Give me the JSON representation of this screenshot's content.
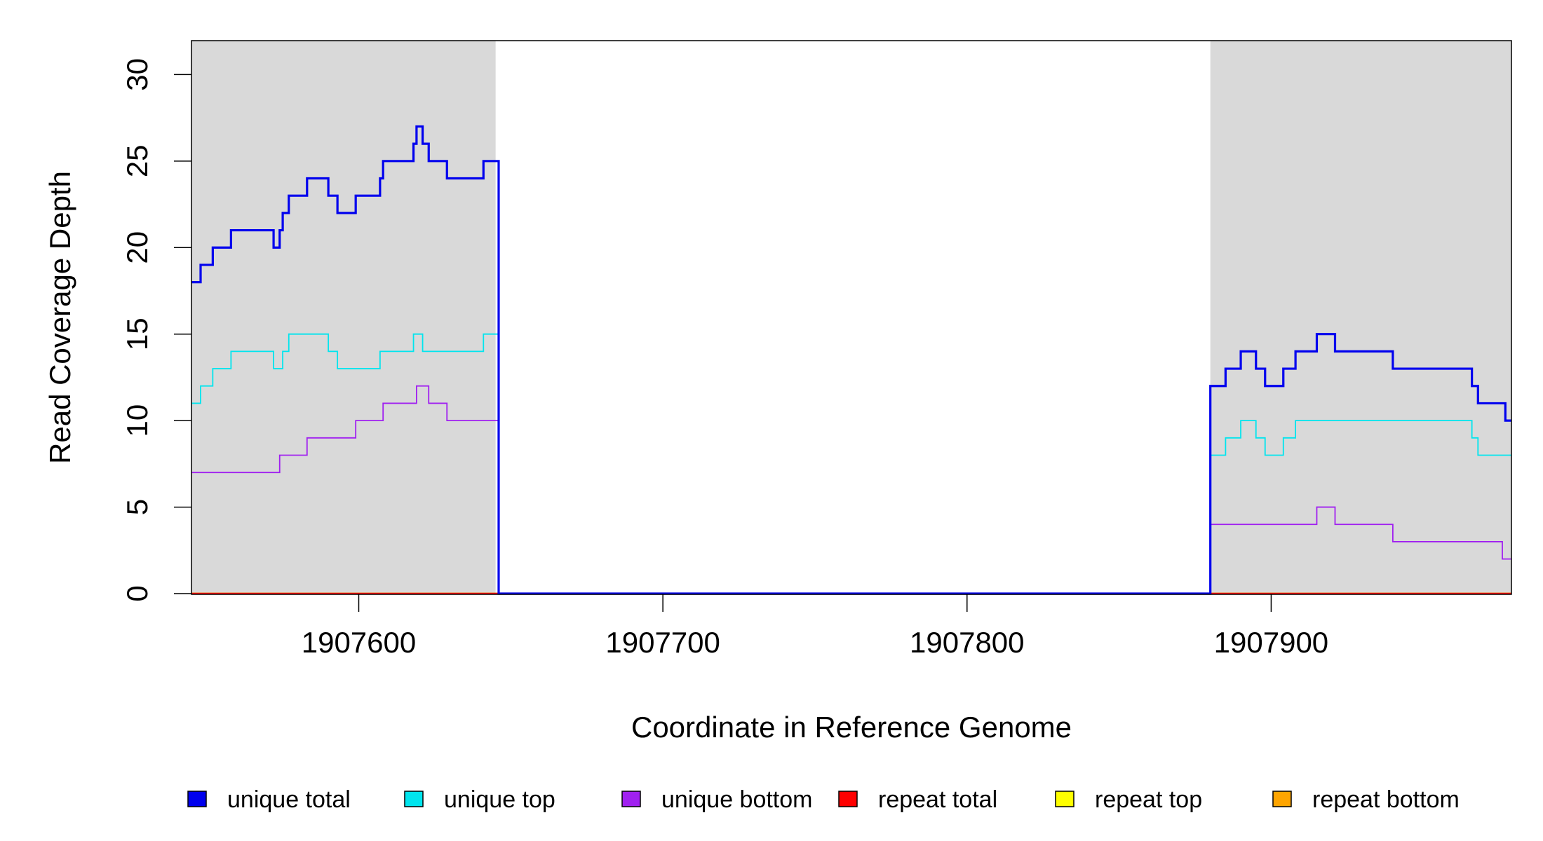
{
  "chart_data": {
    "type": "line",
    "step": true,
    "title": "",
    "xlabel": "Coordinate in Reference Genome",
    "ylabel": "Read Coverage Depth",
    "xlim": [
      1907545,
      1907979
    ],
    "ylim": [
      0,
      32
    ],
    "xticks": [
      1907600,
      1907700,
      1907800,
      1907900
    ],
    "yticks": [
      0,
      5,
      10,
      15,
      20,
      25,
      30
    ],
    "grid": false,
    "legend_position": "bottom",
    "shaded_regions": [
      {
        "x": [
          1907545,
          1907645
        ],
        "color": "#d9d9d9"
      },
      {
        "x": [
          1907880,
          1907979
        ],
        "color": "#d9d9d9"
      }
    ],
    "series": [
      {
        "name": "unique total",
        "color": "#0000ee",
        "points": [
          [
            1907545,
            18
          ],
          [
            1907548,
            19
          ],
          [
            1907552,
            20
          ],
          [
            1907558,
            21
          ],
          [
            1907572,
            20
          ],
          [
            1907574,
            21
          ],
          [
            1907575,
            22
          ],
          [
            1907577,
            23
          ],
          [
            1907583,
            24
          ],
          [
            1907590,
            23
          ],
          [
            1907593,
            22
          ],
          [
            1907599,
            23
          ],
          [
            1907607,
            24
          ],
          [
            1907608,
            25
          ],
          [
            1907618,
            26
          ],
          [
            1907619,
            27
          ],
          [
            1907621,
            26
          ],
          [
            1907623,
            25
          ],
          [
            1907629,
            24
          ],
          [
            1907641,
            25
          ],
          [
            1907646,
            0
          ],
          [
            1907880,
            12
          ],
          [
            1907885,
            13
          ],
          [
            1907890,
            14
          ],
          [
            1907895,
            13
          ],
          [
            1907898,
            12
          ],
          [
            1907904,
            13
          ],
          [
            1907908,
            14
          ],
          [
            1907915,
            15
          ],
          [
            1907921,
            14
          ],
          [
            1907940,
            13
          ],
          [
            1907966,
            12
          ],
          [
            1907968,
            11
          ],
          [
            1907977,
            10
          ]
        ]
      },
      {
        "name": "unique top",
        "color": "#00e5ee",
        "points": [
          [
            1907545,
            11
          ],
          [
            1907548,
            12
          ],
          [
            1907552,
            13
          ],
          [
            1907558,
            14
          ],
          [
            1907572,
            13
          ],
          [
            1907575,
            14
          ],
          [
            1907577,
            15
          ],
          [
            1907590,
            14
          ],
          [
            1907593,
            13
          ],
          [
            1907607,
            14
          ],
          [
            1907618,
            15
          ],
          [
            1907621,
            14
          ],
          [
            1907641,
            15
          ],
          [
            1907646,
            0
          ],
          [
            1907880,
            8
          ],
          [
            1907885,
            9
          ],
          [
            1907890,
            10
          ],
          [
            1907895,
            9
          ],
          [
            1907898,
            8
          ],
          [
            1907904,
            9
          ],
          [
            1907908,
            10
          ],
          [
            1907966,
            9
          ],
          [
            1907968,
            8
          ]
        ]
      },
      {
        "name": "unique bottom",
        "color": "#a020f0",
        "points": [
          [
            1907545,
            7
          ],
          [
            1907574,
            8
          ],
          [
            1907583,
            9
          ],
          [
            1907599,
            10
          ],
          [
            1907608,
            11
          ],
          [
            1907619,
            12
          ],
          [
            1907623,
            11
          ],
          [
            1907629,
            10
          ],
          [
            1907646,
            0
          ],
          [
            1907880,
            4
          ],
          [
            1907915,
            5
          ],
          [
            1907921,
            4
          ],
          [
            1907940,
            3
          ],
          [
            1907976,
            2
          ]
        ]
      },
      {
        "name": "repeat total",
        "color": "#ff0000",
        "points": [
          [
            1907545,
            0
          ]
        ]
      },
      {
        "name": "repeat top",
        "color": "#ffff00",
        "points": [
          [
            1907545,
            0
          ]
        ]
      },
      {
        "name": "repeat bottom",
        "color": "#ffa500",
        "points": [
          [
            1907545,
            0
          ]
        ]
      }
    ]
  }
}
